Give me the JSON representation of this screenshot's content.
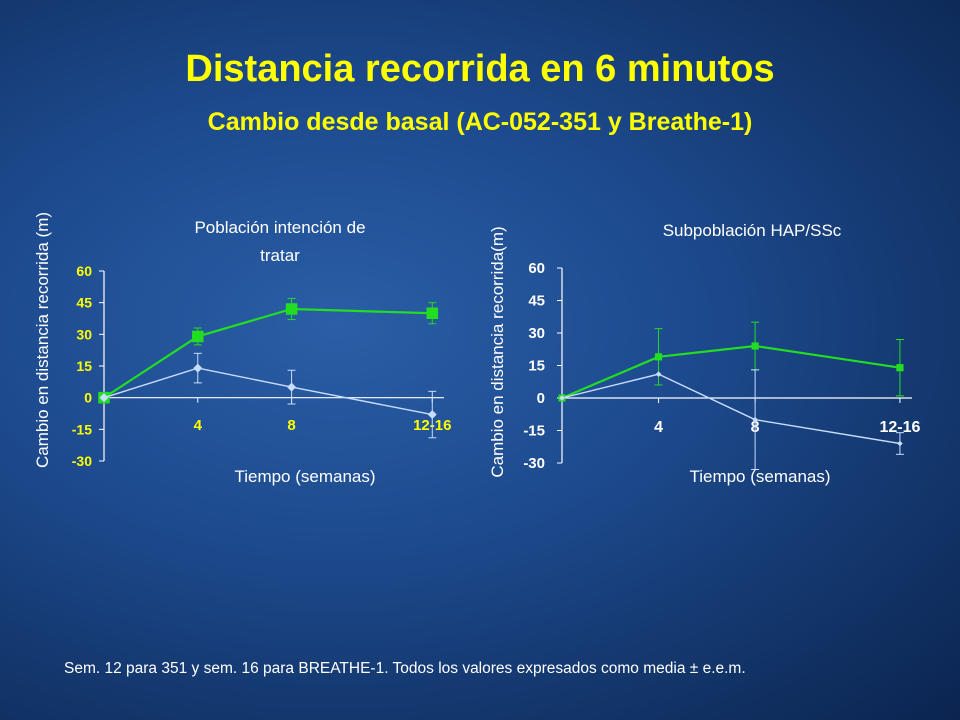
{
  "slide": {
    "title": "Distancia recorrida en 6 minutos",
    "subtitle": "Cambio desde basal (AC-052-351 y Breathe-1)",
    "footnote": "Sem. 12 para 351 y sem. 16 para BREATHE-1. Todos los valores expresados como media ± e.e.m."
  },
  "colors": {
    "series_green": "#22dd22",
    "series_light_blue": "#c8ddff",
    "tick_left": "#ffff00",
    "tick_right": "#ffffff"
  },
  "chart_data": [
    {
      "type": "line",
      "title_lines": [
        "Población intención de",
        "tratar"
      ],
      "xlabel": "Tiempo (semanas)",
      "ylabel": "Cambio en distancia recorrida (m)",
      "x": [
        0,
        4,
        8,
        14
      ],
      "x_tick_labels": [
        "4",
        "8",
        "12-16"
      ],
      "x_tick_values": [
        4,
        8,
        14
      ],
      "y_ticks": [
        60,
        45,
        30,
        15,
        0,
        -15,
        -30
      ],
      "ylim": [
        -30,
        60
      ],
      "xlim": [
        0,
        14.5
      ],
      "series": [
        {
          "values": [
            0,
            29,
            42,
            40
          ],
          "errors": [
            0,
            4,
            5,
            5
          ],
          "marker": "square",
          "color_key": "series_green"
        },
        {
          "values": [
            0,
            14,
            5,
            -8
          ],
          "errors": [
            0,
            7,
            8,
            11
          ],
          "marker": "diamond",
          "color_key": "series_light_blue"
        }
      ]
    },
    {
      "type": "line",
      "title_lines": [
        "Subpoblación HAP/SSc"
      ],
      "xlabel": "Tiempo (semanas)",
      "ylabel": "Cambio en distancia recorrida(m)",
      "x": [
        0,
        4,
        8,
        14
      ],
      "x_tick_labels": [
        "4",
        "8",
        "12-16"
      ],
      "x_tick_values": [
        4,
        8,
        14
      ],
      "y_ticks": [
        60,
        45,
        30,
        15,
        0,
        -15,
        -30
      ],
      "ylim": [
        -30,
        60
      ],
      "xlim": [
        0,
        14.5
      ],
      "series": [
        {
          "values": [
            0,
            19,
            24,
            14
          ],
          "errors": [
            0,
            13,
            11,
            13
          ],
          "marker": "square",
          "color_key": "series_green"
        },
        {
          "values": [
            0,
            11,
            -10,
            -21
          ],
          "errors": [
            0,
            0,
            23,
            5
          ],
          "marker": "diamond",
          "color_key": "series_light_blue"
        }
      ]
    }
  ]
}
